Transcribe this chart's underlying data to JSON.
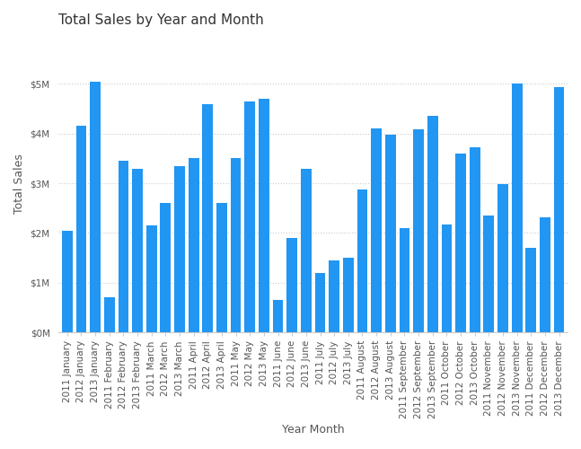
{
  "title": "Total Sales by Year and Month",
  "xlabel": "Year Month",
  "ylabel": "Total Sales",
  "bar_color": "#2196F3",
  "background_color": "#FFFFFF",
  "ylim": [
    0,
    6000000
  ],
  "yticks": [
    0,
    1000000,
    2000000,
    3000000,
    4000000,
    5000000
  ],
  "ytick_labels": [
    "$0M",
    "$1M",
    "$2M",
    "$3M",
    "$4M",
    "$5M"
  ],
  "categories": [
    "2011 January",
    "2012 January",
    "2013 January",
    "2011 February",
    "2012 February",
    "2013 February",
    "2011 March",
    "2012 March",
    "2013 March",
    "2011 April",
    "2012 April",
    "2013 April",
    "2011 May",
    "2012 May",
    "2013 May",
    "2011 June",
    "2012 June",
    "2013 June",
    "2011 July",
    "2012 July",
    "2013 July",
    "2011 August",
    "2012 August",
    "2013 August",
    "2011 September",
    "2012 September",
    "2013 September",
    "2011 October",
    "2012 October",
    "2013 October",
    "2011 November",
    "2012 November",
    "2013 November",
    "2011 December",
    "2012 December",
    "2013 December"
  ],
  "values": [
    2050000,
    4150000,
    5050000,
    700000,
    3450000,
    3300000,
    2150000,
    2600000,
    3350000,
    3500000,
    4600000,
    2600000,
    3500000,
    4650000,
    4700000,
    650000,
    1900000,
    3300000,
    1200000,
    1450000,
    1500000,
    2880000,
    4100000,
    3970000,
    2100000,
    4080000,
    4350000,
    2180000,
    3600000,
    3730000,
    2350000,
    2980000,
    5000000,
    1700000,
    2310000,
    4940000
  ],
  "grid_color": "#CCCCCC",
  "title_fontsize": 11,
  "axis_label_fontsize": 9,
  "tick_fontsize": 7.5
}
